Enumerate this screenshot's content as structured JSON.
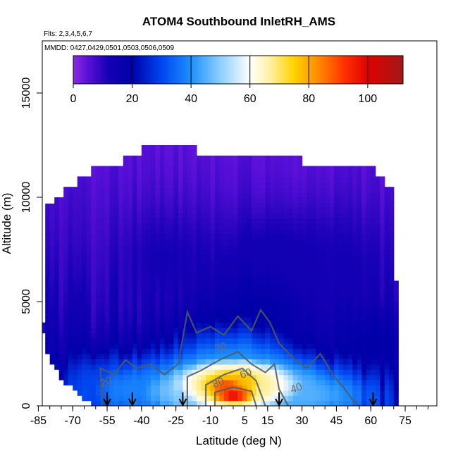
{
  "chart_data": {
    "type": "heatmap",
    "title": "ATOM4 Southbound InletRH_AMS",
    "flights_note": "Flts: 2,3,4,5,6,7",
    "date_note": "MMDD: 0427,0429,0501,0503,0506,0509",
    "xlabel": "Latitude (deg N)",
    "ylabel": "Altitude (m)",
    "xlim": [
      -85,
      85
    ],
    "ylim": [
      0,
      17500
    ],
    "x_ticks": [
      -85,
      -70,
      -55,
      -40,
      -25,
      -10,
      5,
      15,
      30,
      45,
      60,
      75
    ],
    "x_tick_labels": [
      "-85",
      "-70",
      "-55",
      "-40",
      "-25",
      "-10",
      "5",
      "15",
      "30",
      "45",
      "60",
      "75"
    ],
    "y_ticks": [
      0,
      5000,
      10000,
      15000
    ],
    "y_tick_labels": [
      "0",
      "5000",
      "10000",
      "15000"
    ],
    "colorbar": {
      "min": 0,
      "max": 112,
      "ticks": [
        0,
        20,
        40,
        60,
        80,
        100
      ],
      "tick_labels": [
        "0",
        "20",
        "40",
        "60",
        "80",
        "100"
      ],
      "stops": [
        {
          "v": 0,
          "c": "#8a2be2"
        },
        {
          "v": 5,
          "c": "#5a10d8"
        },
        {
          "v": 12,
          "c": "#1400b4"
        },
        {
          "v": 20,
          "c": "#0000a8"
        },
        {
          "v": 30,
          "c": "#0046f0"
        },
        {
          "v": 40,
          "c": "#1e90ff"
        },
        {
          "v": 50,
          "c": "#8ccfff"
        },
        {
          "v": 60,
          "c": "#ffffff"
        },
        {
          "v": 67,
          "c": "#fff0a0"
        },
        {
          "v": 75,
          "c": "#ffd200"
        },
        {
          "v": 83,
          "c": "#ff8c00"
        },
        {
          "v": 92,
          "c": "#ff3200"
        },
        {
          "v": 100,
          "c": "#e00000"
        },
        {
          "v": 112,
          "c": "#a01a1a"
        }
      ]
    },
    "profile_latitudes": [
      -55,
      -44,
      -22,
      20,
      61
    ],
    "contour_labels": [
      {
        "text": "20",
        "lat": -55,
        "alt": 1000
      },
      {
        "text": "20",
        "lat": -5,
        "alt": 2650
      },
      {
        "text": "60",
        "lat": 6,
        "alt": 1400
      },
      {
        "text": "80",
        "lat": -6,
        "alt": 950
      },
      {
        "text": "40",
        "lat": 28,
        "alt": 700
      }
    ],
    "field_columns": [
      {
        "lat": -84,
        "top": 4000
      },
      {
        "lat": -82,
        "top": 9700
      },
      {
        "lat": -78,
        "top": 10000
      },
      {
        "lat": -73,
        "top": 10500
      },
      {
        "lat": -67,
        "top": 11000
      },
      {
        "lat": -61,
        "top": 11500
      },
      {
        "lat": -55,
        "top": 11500
      },
      {
        "lat": -48,
        "top": 12000
      },
      {
        "lat": -40,
        "top": 12500
      },
      {
        "lat": -30,
        "top": 12500
      },
      {
        "lat": -22,
        "top": 12500
      },
      {
        "lat": -15,
        "top": 12000
      },
      {
        "lat": -5,
        "top": 12000
      },
      {
        "lat": 5,
        "top": 12000
      },
      {
        "lat": 15,
        "top": 12000
      },
      {
        "lat": 22,
        "top": 12000
      },
      {
        "lat": 30,
        "top": 11500
      },
      {
        "lat": 38,
        "top": 11500
      },
      {
        "lat": 45,
        "top": 11500
      },
      {
        "lat": 52,
        "top": 11500
      },
      {
        "lat": 58,
        "top": 11500
      },
      {
        "lat": 63,
        "top": 11000
      },
      {
        "lat": 67,
        "top": 10500
      },
      {
        "lat": 70,
        "top": 6000
      },
      {
        "lat": 72,
        "top": 3500
      }
    ],
    "field_bottom_edge": [
      {
        "lat": -84,
        "bottom": 4000
      },
      {
        "lat": -80,
        "bottom": 2200
      },
      {
        "lat": -74,
        "bottom": 1300
      },
      {
        "lat": -68,
        "bottom": 700
      },
      {
        "lat": -62,
        "bottom": 200
      },
      {
        "lat": -58,
        "bottom": 0
      },
      {
        "lat": 72,
        "bottom": 0
      }
    ],
    "features": [
      {
        "lat": 0,
        "alt": 500,
        "rh": 102,
        "sx": 11,
        "sy": 500
      },
      {
        "lat": -3,
        "alt": 1000,
        "rh": 90,
        "sx": 14,
        "sy": 700
      },
      {
        "lat": 1,
        "alt": 1300,
        "rh": 78,
        "sx": 20,
        "sy": 800
      },
      {
        "lat": 3,
        "alt": 900,
        "rh": 68,
        "sx": 34,
        "sy": 1300
      },
      {
        "lat": 0,
        "alt": 1800,
        "rh": 40,
        "sx": 28,
        "sy": 2100
      },
      {
        "lat": -15,
        "alt": 600,
        "rh": 50,
        "sx": 25,
        "sy": 1000
      },
      {
        "lat": 30,
        "alt": 500,
        "rh": 45,
        "sx": 30,
        "sy": 1100
      },
      {
        "lat": -45,
        "alt": 800,
        "rh": 38,
        "sx": 22,
        "sy": 1300
      },
      {
        "lat": -60,
        "alt": 900,
        "rh": 30,
        "sx": 12,
        "sy": 1400
      },
      {
        "lat": 10,
        "alt": 4200,
        "rh": 20,
        "sx": 25,
        "sy": 2600
      },
      {
        "lat": -30,
        "alt": 7000,
        "rh": 12,
        "sx": 20,
        "sy": 2500
      },
      {
        "lat": 20,
        "alt": 7000,
        "rh": 13,
        "sx": 30,
        "sy": 2500
      },
      {
        "lat": 48,
        "alt": 6500,
        "rh": 12,
        "sx": 20,
        "sy": 2500
      },
      {
        "lat": -70,
        "alt": 6000,
        "rh": 8,
        "sx": 10,
        "sy": 3000
      },
      {
        "lat": 60,
        "alt": 3000,
        "rh": 20,
        "sx": 15,
        "sy": 1500
      }
    ]
  }
}
